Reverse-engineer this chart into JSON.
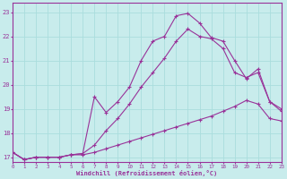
{
  "xlabel": "Windchill (Refroidissement éolien,°C)",
  "bg_color": "#c8ecec",
  "line_color": "#993399",
  "grid_color": "#aadddd",
  "xmin": 0,
  "xmax": 23,
  "ymin": 16.8,
  "ymax": 23.4,
  "yticks": [
    17,
    18,
    19,
    20,
    21,
    22,
    23
  ],
  "xticks": [
    0,
    1,
    2,
    3,
    4,
    5,
    6,
    7,
    8,
    9,
    10,
    11,
    12,
    13,
    14,
    15,
    16,
    17,
    18,
    19,
    20,
    21,
    22,
    23
  ],
  "line1_x": [
    0,
    1,
    2,
    3,
    4,
    5,
    6,
    7,
    8,
    9,
    10,
    11,
    12,
    13,
    14,
    15,
    16,
    17,
    18,
    19,
    20,
    21,
    22,
    23
  ],
  "line1_y": [
    17.2,
    16.9,
    17.0,
    17.0,
    17.0,
    17.1,
    17.1,
    17.2,
    17.35,
    17.5,
    17.65,
    17.8,
    17.95,
    18.1,
    18.25,
    18.4,
    18.55,
    18.7,
    18.9,
    19.1,
    19.35,
    19.2,
    18.6,
    18.5
  ],
  "line2_x": [
    0,
    1,
    2,
    3,
    4,
    5,
    6,
    7,
    8,
    9,
    10,
    11,
    12,
    13,
    14,
    15,
    16,
    17,
    18,
    19,
    20,
    21,
    22,
    23
  ],
  "line2_y": [
    17.2,
    16.9,
    17.0,
    17.0,
    17.0,
    17.1,
    17.15,
    17.5,
    18.1,
    18.6,
    19.2,
    19.9,
    20.5,
    21.1,
    21.8,
    22.3,
    22.0,
    21.9,
    21.5,
    20.5,
    20.3,
    20.5,
    19.3,
    19.0
  ],
  "line3_x": [
    0,
    1,
    2,
    3,
    4,
    5,
    6,
    7,
    8,
    9,
    10,
    11,
    12,
    13,
    14,
    15,
    16,
    17,
    18,
    19,
    20,
    21,
    22,
    23
  ],
  "line3_y": [
    17.2,
    16.9,
    17.0,
    17.0,
    17.0,
    17.1,
    17.15,
    19.5,
    18.85,
    19.3,
    19.9,
    21.0,
    21.8,
    22.0,
    22.85,
    22.95,
    22.55,
    21.95,
    21.8,
    21.0,
    20.25,
    20.65,
    19.3,
    18.9
  ]
}
